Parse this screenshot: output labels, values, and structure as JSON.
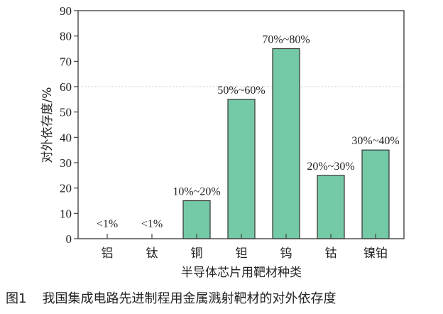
{
  "chart_data": {
    "type": "bar",
    "categories": [
      "铝",
      "钛",
      "铜",
      "钽",
      "钨",
      "钴",
      "镍铂"
    ],
    "values": [
      0,
      0,
      15,
      55,
      75,
      25,
      35
    ],
    "data_labels": [
      "<1%",
      "<1%",
      "10%~20%",
      "50%~60%",
      "70%~80%",
      "20%~30%",
      "30%~40%"
    ],
    "xlabel": "半导体芯片用靶材种类",
    "ylabel": "对外依存度/%",
    "ylim": [
      0,
      90
    ],
    "yticks": [
      0,
      10,
      20,
      30,
      40,
      50,
      60,
      70,
      80,
      90
    ],
    "reference_line": 60,
    "grid": false,
    "colors": {
      "bar": "#74c9a6",
      "bar_edge": "#333333",
      "axis": "#444444",
      "reference_line": "#cccccc"
    }
  },
  "caption": {
    "number": "图1",
    "text": "我国集成电路先进制程用金属溅射靶材的对外依存度"
  }
}
